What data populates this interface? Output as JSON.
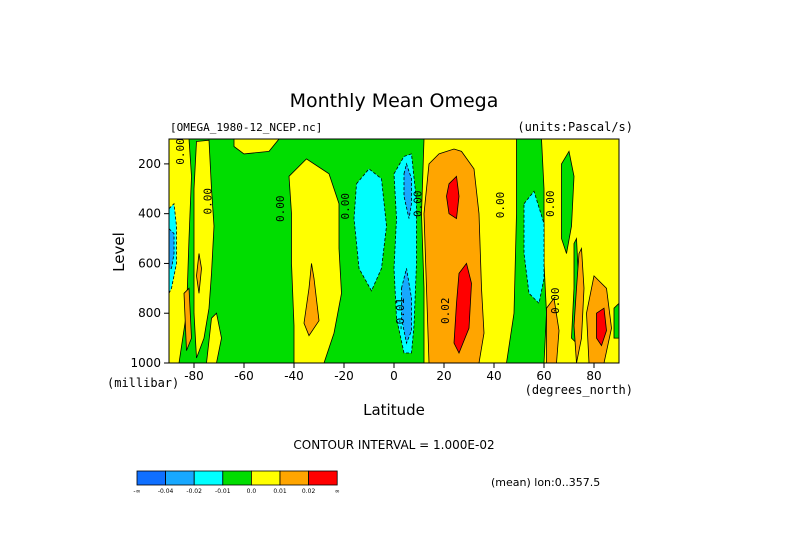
{
  "chart_data": {
    "type": "contour",
    "title": "Monthly Mean Omega",
    "source_label": "[OMEGA_1980-12_NCEP.nc]",
    "units_label": "(units:Pascal/s)",
    "ylabel": "Level",
    "yunit": "(millibar)",
    "xlabel": "Latitude",
    "xunit": "(degrees_north)",
    "xlim": [
      -90,
      90
    ],
    "ylim": [
      1000,
      100
    ],
    "xticks": [
      {
        "value": -80,
        "label": "-80"
      },
      {
        "value": -60,
        "label": "-60"
      },
      {
        "value": -40,
        "label": "-40"
      },
      {
        "value": -20,
        "label": "-20"
      },
      {
        "value": 0,
        "label": "0"
      },
      {
        "value": 20,
        "label": "20"
      },
      {
        "value": 40,
        "label": "40"
      },
      {
        "value": 60,
        "label": "60"
      },
      {
        "value": 80,
        "label": "80"
      }
    ],
    "yticks": [
      {
        "value": 200,
        "label": "200"
      },
      {
        "value": 400,
        "label": "400"
      },
      {
        "value": 600,
        "label": "600"
      },
      {
        "value": 800,
        "label": "800"
      },
      {
        "value": 1000,
        "label": "1000"
      }
    ],
    "contour_interval_text": "CONTOUR INTERVAL = 1.000E-02",
    "mean_text": "(mean) lon:0..357.5",
    "legend": [
      {
        "label": "-∞",
        "color": "#0f6fff"
      },
      {
        "label": "-0.04",
        "color": "#17a8ff"
      },
      {
        "label": "-0.02",
        "color": "#00ffff"
      },
      {
        "label": "-0.01",
        "color": "#00dd00"
      },
      {
        "label": "0.0",
        "color": "#ffff00"
      },
      {
        "label": "0.01",
        "color": "#ffa500"
      },
      {
        "label": "0.02",
        "color": "#ff0000"
      },
      {
        "label": "∞",
        "color": ""
      }
    ],
    "background_color": "#00dd00",
    "regions": [
      {
        "level": "yellow",
        "color": "#ffff00",
        "points": [
          [
            -90,
            100
          ],
          [
            -82,
            100
          ],
          [
            -81,
            250
          ],
          [
            -82,
            500
          ],
          [
            -83,
            800
          ],
          [
            -86,
            1000
          ],
          [
            -90,
            1000
          ]
        ]
      },
      {
        "level": "cyan",
        "color": "#00ffff",
        "points": [
          [
            -90,
            380
          ],
          [
            -88,
            360
          ],
          [
            -87,
            450
          ],
          [
            -87,
            600
          ],
          [
            -89,
            700
          ],
          [
            -90,
            720
          ]
        ]
      },
      {
        "level": "blue",
        "color": "#17a8ff",
        "points": [
          [
            -90,
            460
          ],
          [
            -88,
            480
          ],
          [
            -88,
            560
          ],
          [
            -89,
            620
          ],
          [
            -90,
            620
          ]
        ]
      },
      {
        "level": "yellow",
        "color": "#ffff00",
        "points": [
          [
            -79,
            110
          ],
          [
            -74,
            105
          ],
          [
            -73,
            300
          ],
          [
            -72,
            450
          ],
          [
            -73,
            640
          ],
          [
            -74,
            780
          ],
          [
            -76,
            900
          ],
          [
            -79,
            980
          ],
          [
            -80,
            800
          ],
          [
            -80,
            600
          ],
          [
            -80,
            300
          ]
        ]
      },
      {
        "level": "orange",
        "color": "#ffa500",
        "points": [
          [
            -79,
            650
          ],
          [
            -78,
            560
          ],
          [
            -77,
            620
          ],
          [
            -78,
            720
          ]
        ]
      },
      {
        "level": "orange",
        "color": "#ffa500",
        "points": [
          [
            -84,
            720
          ],
          [
            -82,
            700
          ],
          [
            -81,
            900
          ],
          [
            -83,
            950
          ]
        ]
      },
      {
        "level": "yellow",
        "color": "#ffff00",
        "points": [
          [
            -73,
            820
          ],
          [
            -71,
            800
          ],
          [
            -69,
            900
          ],
          [
            -71,
            1000
          ],
          [
            -75,
            1000
          ]
        ]
      },
      {
        "level": "yellow",
        "color": "#ffff00",
        "points": [
          [
            -64,
            100
          ],
          [
            -46,
            100
          ],
          [
            -50,
            150
          ],
          [
            -60,
            160
          ],
          [
            -64,
            130
          ]
        ]
      },
      {
        "level": "yellow",
        "color": "#ffff00",
        "points": [
          [
            -42,
            250
          ],
          [
            -35,
            180
          ],
          [
            -26,
            240
          ],
          [
            -22,
            360
          ],
          [
            -22,
            540
          ],
          [
            -21,
            720
          ],
          [
            -24,
            880
          ],
          [
            -28,
            1000
          ],
          [
            -40,
            1000
          ],
          [
            -40,
            850
          ],
          [
            -41,
            600
          ],
          [
            -41,
            400
          ]
        ]
      },
      {
        "level": "orange",
        "color": "#ffa500",
        "points": [
          [
            -33,
            600
          ],
          [
            -32,
            660
          ],
          [
            -30,
            830
          ],
          [
            -34,
            890
          ],
          [
            -36,
            840
          ],
          [
            -34,
            700
          ]
        ]
      },
      {
        "level": "cyan",
        "color": "#00ffff",
        "points": [
          [
            -15,
            280
          ],
          [
            -10,
            220
          ],
          [
            -5,
            260
          ],
          [
            -3,
            450
          ],
          [
            -5,
            620
          ],
          [
            -9,
            710
          ],
          [
            -14,
            620
          ],
          [
            -16,
            420
          ]
        ]
      },
      {
        "level": "cyan",
        "color": "#00ffff",
        "points": [
          [
            0,
            240
          ],
          [
            4,
            170
          ],
          [
            7,
            160
          ],
          [
            9,
            350
          ],
          [
            9,
            600
          ],
          [
            8,
            850
          ],
          [
            7,
            960
          ],
          [
            4,
            960
          ],
          [
            1,
            820
          ],
          [
            0,
            620
          ],
          [
            1,
            420
          ]
        ]
      },
      {
        "level": "blue",
        "color": "#17a8ff",
        "points": [
          [
            4,
            240
          ],
          [
            5,
            200
          ],
          [
            7,
            260
          ],
          [
            7,
            360
          ],
          [
            6,
            420
          ],
          [
            4,
            330
          ]
        ]
      },
      {
        "level": "blue",
        "color": "#17a8ff",
        "points": [
          [
            3,
            700
          ],
          [
            5,
            620
          ],
          [
            7,
            740
          ],
          [
            7,
            870
          ],
          [
            5,
            920
          ],
          [
            3,
            820
          ]
        ]
      },
      {
        "level": "yellow",
        "color": "#ffff00",
        "points": [
          [
            12,
            100
          ],
          [
            49,
            100
          ],
          [
            49,
            400
          ],
          [
            48,
            800
          ],
          [
            45,
            1000
          ],
          [
            12,
            1000
          ],
          [
            12,
            700
          ],
          [
            11,
            400
          ]
        ]
      },
      {
        "level": "orange",
        "color": "#ffa500",
        "points": [
          [
            14,
            200
          ],
          [
            18,
            160
          ],
          [
            24,
            140
          ],
          [
            27,
            150
          ],
          [
            32,
            220
          ],
          [
            34,
            400
          ],
          [
            35,
            700
          ],
          [
            36,
            880
          ],
          [
            34,
            1000
          ],
          [
            14,
            1000
          ],
          [
            13,
            700
          ],
          [
            12,
            400
          ]
        ]
      },
      {
        "level": "red",
        "color": "#ff0000",
        "points": [
          [
            22,
            280
          ],
          [
            25,
            250
          ],
          [
            26,
            330
          ],
          [
            25,
            420
          ],
          [
            22,
            400
          ],
          [
            21,
            330
          ]
        ]
      },
      {
        "level": "red",
        "color": "#ff0000",
        "points": [
          [
            26,
            640
          ],
          [
            29,
            600
          ],
          [
            31,
            680
          ],
          [
            30,
            860
          ],
          [
            26,
            960
          ],
          [
            24,
            920
          ],
          [
            25,
            760
          ]
        ]
      },
      {
        "level": "yellow",
        "color": "#ffff00",
        "points": [
          [
            59,
            100
          ],
          [
            90,
            100
          ],
          [
            90,
            1000
          ],
          [
            60,
            1000
          ],
          [
            61,
            800
          ],
          [
            60,
            600
          ],
          [
            60,
            300
          ]
        ]
      },
      {
        "level": "cyan",
        "color": "#00ffff",
        "points": [
          [
            52,
            360
          ],
          [
            56,
            310
          ],
          [
            60,
            440
          ],
          [
            60,
            660
          ],
          [
            58,
            760
          ],
          [
            54,
            720
          ],
          [
            52,
            560
          ]
        ]
      },
      {
        "level": "green",
        "color": "#00dd00",
        "points": [
          [
            67,
            200
          ],
          [
            70,
            150
          ],
          [
            72,
            250
          ],
          [
            71,
            450
          ],
          [
            69,
            560
          ],
          [
            67,
            500
          ]
        ]
      },
      {
        "level": "green",
        "color": "#00dd00",
        "points": [
          [
            72,
            520
          ],
          [
            73,
            500
          ],
          [
            74,
            700
          ],
          [
            73,
            920
          ],
          [
            71,
            900
          ],
          [
            72,
            700
          ]
        ]
      },
      {
        "level": "orange",
        "color": "#ffa500",
        "points": [
          [
            61,
            780
          ],
          [
            64,
            740
          ],
          [
            66,
            870
          ],
          [
            65,
            1000
          ],
          [
            61,
            1000
          ]
        ]
      },
      {
        "level": "orange",
        "color": "#ffa500",
        "points": [
          [
            74,
            560
          ],
          [
            75,
            540
          ],
          [
            76,
            700
          ],
          [
            75,
            900
          ],
          [
            73,
            1000
          ],
          [
            72,
            850
          ],
          [
            73,
            700
          ]
        ]
      },
      {
        "level": "orange",
        "color": "#ffa500",
        "points": [
          [
            80,
            650
          ],
          [
            85,
            700
          ],
          [
            87,
            860
          ],
          [
            84,
            1000
          ],
          [
            78,
            1000
          ],
          [
            77,
            800
          ]
        ]
      },
      {
        "level": "red",
        "color": "#ff0000",
        "points": [
          [
            81,
            800
          ],
          [
            84,
            780
          ],
          [
            85,
            870
          ],
          [
            83,
            930
          ],
          [
            81,
            900
          ]
        ]
      },
      {
        "level": "green",
        "color": "#00dd00",
        "points": [
          [
            88,
            780
          ],
          [
            90,
            760
          ],
          [
            90,
            900
          ],
          [
            88,
            900
          ]
        ]
      }
    ],
    "contour_labels": [
      {
        "text": "0.00",
        "x": -84,
        "y": 150
      },
      {
        "text": "0.00",
        "x": -73,
        "y": 350
      },
      {
        "text": "0.00",
        "x": -44,
        "y": 380
      },
      {
        "text": "0.00",
        "x": -18,
        "y": 370
      },
      {
        "text": "0.00",
        "x": 11,
        "y": 360
      },
      {
        "text": "0.00",
        "x": 44,
        "y": 365
      },
      {
        "text": "0.00",
        "x": 64,
        "y": 360
      },
      {
        "text": "0.00",
        "x": 66,
        "y": 750
      },
      {
        "text": "0.02",
        "x": 22,
        "y": 790
      },
      {
        "text": "-0.01",
        "x": 4,
        "y": 805
      }
    ]
  }
}
